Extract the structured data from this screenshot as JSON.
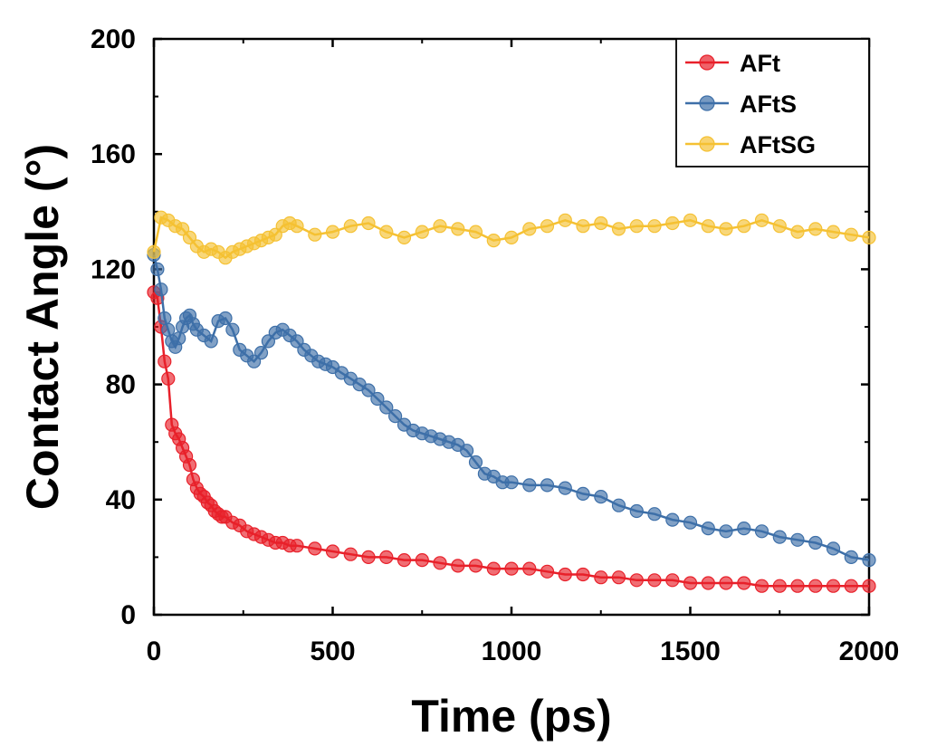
{
  "chart_data": {
    "type": "scatter",
    "title": "",
    "xlabel": "Time (ps)",
    "ylabel": "Contact Angle (°)",
    "xlim": [
      0,
      2000
    ],
    "ylim": [
      0,
      200
    ],
    "xticks": [
      0,
      500,
      1000,
      1500,
      2000
    ],
    "yticks": [
      0,
      40,
      80,
      120,
      160,
      200
    ],
    "grid": false,
    "legend_position": "top-right",
    "series": [
      {
        "name": "AFt",
        "color": "#e8202a",
        "x": [
          0,
          10,
          20,
          30,
          40,
          50,
          60,
          70,
          80,
          90,
          100,
          110,
          120,
          130,
          140,
          150,
          160,
          170,
          180,
          190,
          200,
          220,
          240,
          260,
          280,
          300,
          320,
          340,
          360,
          380,
          400,
          450,
          500,
          550,
          600,
          650,
          700,
          750,
          800,
          850,
          900,
          950,
          1000,
          1050,
          1100,
          1150,
          1200,
          1250,
          1300,
          1350,
          1400,
          1450,
          1500,
          1550,
          1600,
          1650,
          1700,
          1750,
          1800,
          1850,
          1900,
          1950,
          2000
        ],
        "values": [
          112,
          110,
          100,
          88,
          82,
          66,
          63,
          61,
          58,
          55,
          52,
          47,
          44,
          42,
          41,
          39,
          38,
          36,
          35,
          34,
          34,
          32,
          31,
          29,
          28,
          27,
          26,
          25,
          25,
          24,
          24,
          23,
          22,
          21,
          20,
          20,
          19,
          19,
          18,
          17,
          17,
          16,
          16,
          16,
          15,
          14,
          14,
          13,
          13,
          12,
          12,
          12,
          11,
          11,
          11,
          11,
          10,
          10,
          10,
          10,
          10,
          10,
          10
        ]
      },
      {
        "name": "AFtS",
        "color": "#3d6fa8",
        "x": [
          0,
          10,
          20,
          30,
          40,
          50,
          60,
          70,
          80,
          90,
          100,
          110,
          120,
          140,
          160,
          180,
          200,
          220,
          240,
          260,
          280,
          300,
          320,
          340,
          360,
          380,
          400,
          420,
          440,
          460,
          480,
          500,
          525,
          550,
          575,
          600,
          625,
          650,
          675,
          700,
          725,
          750,
          775,
          800,
          825,
          850,
          875,
          900,
          925,
          950,
          975,
          1000,
          1050,
          1100,
          1150,
          1200,
          1250,
          1300,
          1350,
          1400,
          1450,
          1500,
          1550,
          1600,
          1650,
          1700,
          1750,
          1800,
          1850,
          1900,
          1950,
          2000
        ],
        "values": [
          125,
          120,
          113,
          103,
          99,
          95,
          93,
          96,
          100,
          103,
          104,
          101,
          99,
          97,
          95,
          102,
          103,
          99,
          92,
          90,
          88,
          91,
          95,
          98,
          99,
          97,
          95,
          92,
          90,
          88,
          87,
          86,
          84,
          82,
          80,
          78,
          75,
          72,
          69,
          66,
          64,
          63,
          62,
          61,
          60,
          59,
          57,
          53,
          49,
          48,
          46,
          46,
          45,
          45,
          44,
          42,
          41,
          38,
          36,
          35,
          33,
          32,
          30,
          29,
          30,
          29,
          27,
          26,
          25,
          23,
          20,
          19
        ]
      },
      {
        "name": "AFtSG",
        "color": "#f5c133",
        "x": [
          0,
          20,
          40,
          60,
          80,
          100,
          120,
          140,
          160,
          180,
          200,
          220,
          240,
          260,
          280,
          300,
          320,
          340,
          360,
          380,
          400,
          450,
          500,
          550,
          600,
          650,
          700,
          750,
          800,
          850,
          900,
          950,
          1000,
          1050,
          1100,
          1150,
          1200,
          1250,
          1300,
          1350,
          1400,
          1450,
          1500,
          1550,
          1600,
          1650,
          1700,
          1750,
          1800,
          1850,
          1900,
          1950,
          2000
        ],
        "values": [
          126,
          138,
          137,
          135,
          134,
          131,
          128,
          126,
          127,
          126,
          124,
          126,
          127,
          128,
          129,
          130,
          131,
          132,
          135,
          136,
          135,
          132,
          133,
          135,
          136,
          133,
          131,
          133,
          135,
          134,
          133,
          130,
          131,
          134,
          135,
          137,
          135,
          136,
          134,
          135,
          135,
          136,
          137,
          135,
          134,
          135,
          137,
          135,
          133,
          134,
          133,
          132,
          131
        ]
      }
    ]
  }
}
